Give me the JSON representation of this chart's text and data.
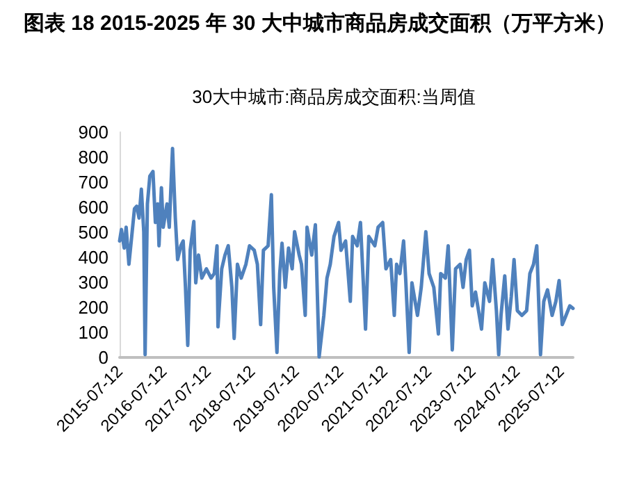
{
  "chart_data": {
    "type": "line",
    "title": "图表 18 2015-2025 年 30 大中城市商品房成交面积（万平方米）",
    "subtitle": "30大中城市:商品房成交面积:当周值",
    "x": [
      "2015-07-12",
      "2015-07-27",
      "2015-08-19",
      "2015-09-04",
      "2015-09-27",
      "2015-10-24",
      "2015-11-12",
      "2015-12-01",
      "2015-12-20",
      "2016-01-08",
      "2016-01-28",
      "2016-02-08",
      "2016-02-27",
      "2016-03-18",
      "2016-04-13",
      "2016-05-03",
      "2016-05-22",
      "2016-06-02",
      "2016-06-22",
      "2016-07-07",
      "2016-08-07",
      "2016-08-26",
      "2016-09-22",
      "2016-10-15",
      "2016-11-03",
      "2016-11-30",
      "2016-12-19",
      "2017-01-07",
      "2017-01-26",
      "2017-02-15",
      "2017-03-17",
      "2017-04-02",
      "2017-04-25",
      "2017-05-22",
      "2017-06-29",
      "2017-08-07",
      "2017-09-02",
      "2017-09-25",
      "2017-10-03",
      "2017-11-03",
      "2017-11-30",
      "2017-12-27",
      "2018-01-26",
      "2018-02-14",
      "2018-03-13",
      "2018-04-13",
      "2018-05-22",
      "2018-06-21",
      "2018-07-30",
      "2018-08-25",
      "2018-09-21",
      "2018-10-14",
      "2018-11-22",
      "2018-12-19",
      "2019-01-07",
      "2019-02-03",
      "2019-02-26",
      "2019-03-17",
      "2019-04-13",
      "2019-05-10",
      "2019-06-09",
      "2019-06-29",
      "2019-08-06",
      "2019-08-25",
      "2019-09-25",
      "2019-10-10",
      "2019-11-18",
      "2019-12-18",
      "2020-01-18",
      "2020-02-26",
      "2020-03-23",
      "2020-04-19",
      "2020-05-20",
      "2020-06-27",
      "2020-07-17",
      "2020-08-24",
      "2020-10-02",
      "2020-10-21",
      "2020-11-28",
      "2020-12-25",
      "2021-02-05",
      "2021-03-04",
      "2021-04-23",
      "2021-05-20",
      "2021-06-27",
      "2021-07-24",
      "2021-09-01",
      "2021-10-01",
      "2021-10-20",
      "2021-11-16",
      "2021-12-17",
      "2022-01-05",
      "2022-02-01",
      "2022-02-24",
      "2022-04-11",
      "2022-05-12",
      "2022-06-19",
      "2022-07-16",
      "2022-08-24",
      "2022-10-01",
      "2022-10-20",
      "2022-11-28",
      "2022-12-21",
      "2023-01-24",
      "2023-02-20",
      "2023-03-30",
      "2023-04-23",
      "2023-05-19",
      "2023-06-15",
      "2023-07-08",
      "2023-08-04",
      "2023-09-23",
      "2023-10-20",
      "2023-11-28",
      "2023-12-24",
      "2024-01-24",
      "2024-02-12",
      "2024-03-02",
      "2024-04-02",
      "2024-04-29",
      "2024-05-26",
      "2024-06-18",
      "2024-07-15",
      "2024-08-22",
      "2024-09-30",
      "2024-10-27",
      "2024-11-26",
      "2024-12-23",
      "2025-01-23",
      "2025-02-19",
      "2025-03-22",
      "2025-04-29",
      "2025-05-30",
      "2025-06-26",
      "2025-07-22",
      "2025-08-22",
      "2025-09-22",
      "2025-10-19"
    ],
    "values": [
      465,
      511,
      437,
      520,
      372,
      502,
      594,
      604,
      557,
      672,
      502,
      11,
      613,
      724,
      743,
      539,
      613,
      446,
      678,
      520,
      613,
      520,
      835,
      557,
      391,
      446,
      465,
      280,
      48,
      428,
      543,
      298,
      409,
      317,
      354,
      317,
      335,
      446,
      122,
      354,
      409,
      446,
      280,
      76,
      372,
      317,
      372,
      446,
      428,
      372,
      131,
      428,
      446,
      650,
      280,
      20,
      335,
      456,
      280,
      437,
      354,
      502,
      409,
      372,
      168,
      520,
      409,
      530,
      2,
      168,
      317,
      372,
      483,
      539,
      428,
      465,
      224,
      483,
      446,
      539,
      113,
      483,
      446,
      520,
      539,
      354,
      391,
      168,
      372,
      335,
      465,
      298,
      20,
      298,
      168,
      280,
      502,
      335,
      280,
      94,
      335,
      317,
      446,
      30,
      354,
      372,
      280,
      391,
      428,
      206,
      261,
      113,
      298,
      224,
      391,
      187,
      11,
      168,
      326,
      113,
      243,
      391,
      187,
      168,
      187,
      335,
      372,
      446,
      11,
      224,
      270,
      168,
      224,
      307,
      131,
      168,
      206,
      196
    ],
    "color": "#4f81bd",
    "line_style": "solid",
    "marker": "none",
    "xlim": [
      "2015-07-12",
      "2025-10-19"
    ],
    "xticks": [
      "2015-07-12",
      "2016-07-12",
      "2017-07-12",
      "2018-07-12",
      "2019-07-12",
      "2020-07-12",
      "2021-07-12",
      "2022-07-12",
      "2023-07-12",
      "2024-07-12",
      "2025-07-12"
    ],
    "ylim": [
      0,
      900
    ],
    "yticks": [
      0,
      100,
      200,
      300,
      400,
      500,
      600,
      700,
      800,
      900
    ],
    "grid": false
  }
}
